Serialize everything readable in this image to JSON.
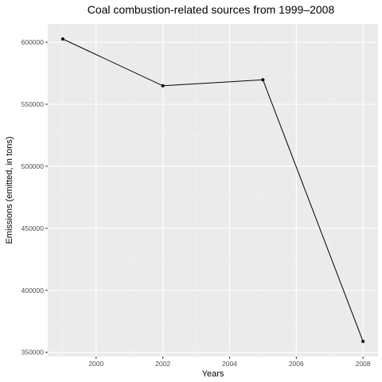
{
  "chart_data": {
    "type": "line",
    "title": "Coal combustion-related sources from 1999–2008",
    "xlabel": "Years",
    "ylabel": "Emissions (emitted, in tons)",
    "x": [
      1999,
      2002,
      2005,
      2008
    ],
    "y": [
      602600,
      564900,
      569700,
      358800
    ],
    "xlim": [
      1998.55,
      2008.45
    ],
    "ylim": [
      346600,
      614800
    ],
    "x_ticks": [
      2000,
      2002,
      2004,
      2006,
      2008
    ],
    "x_tick_labels": [
      "2000",
      "2002",
      "2004",
      "2006",
      "2008"
    ],
    "y_ticks": [
      350000,
      400000,
      450000,
      500000,
      550000,
      600000
    ],
    "y_tick_labels": [
      "350000",
      "400000",
      "450000",
      "500000",
      "550000",
      "600000"
    ],
    "grid": true,
    "legend": "none",
    "colors": {
      "panel_background": "#ebebeb",
      "grid_major": "#ffffff",
      "line": "#000000",
      "points": "#000000"
    }
  }
}
